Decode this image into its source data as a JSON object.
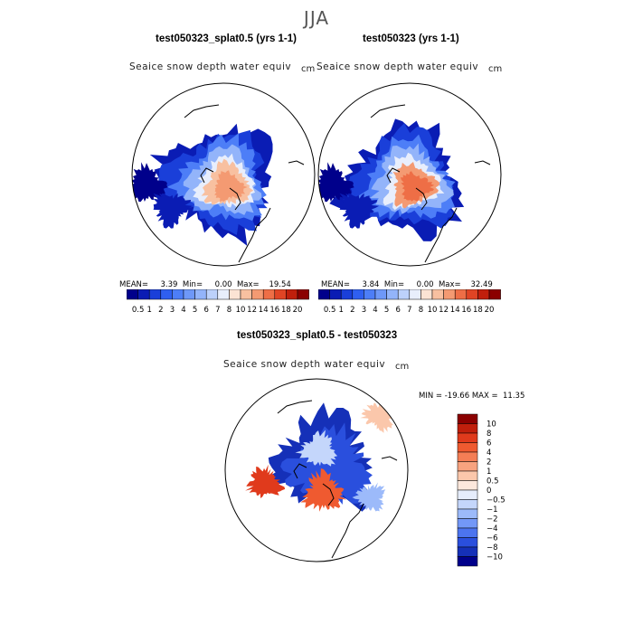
{
  "figure": {
    "season": "JJA",
    "colors": {
      "ocean": "#ffffff",
      "land_outline": "#000000"
    }
  },
  "panels": [
    {
      "title": "test050323_splat0.5 (yrs 1-1)",
      "field": "Seaice snow depth water equiv",
      "unit": "cm",
      "stats": {
        "mean_label": "MEAN=",
        "mean": "3.39",
        "min_label": "Min=",
        "min": "0.00",
        "max_label": "Max=",
        "max": "19.54"
      }
    },
    {
      "title": "test050323 (yrs 1-1)",
      "field": "Seaice snow depth water equiv",
      "unit": "cm",
      "stats": {
        "mean_label": "MEAN=",
        "mean": "3.84",
        "min_label": "Min=",
        "min": "0.00",
        "max_label": "Max=",
        "max": "32.49"
      }
    },
    {
      "title": "test050323_splat0.5 - test050323",
      "field": "Seaice snow depth water equiv",
      "unit": "cm",
      "stats_text": "MIN = -19.66 MAX =  11.35"
    }
  ],
  "chart_data": [
    {
      "type": "heatmap",
      "projection": "north polar stereographic",
      "title": "test050323_splat0.5 (yrs 1-1)",
      "colorbar": {
        "levels": [
          "0.5",
          "1",
          "2",
          "3",
          "4",
          "5",
          "6",
          "7",
          "8",
          "10",
          "12",
          "14",
          "16",
          "18",
          "20"
        ],
        "colors": [
          "#00008b",
          "#0a1cb4",
          "#1a3fd9",
          "#2f5ff0",
          "#4d7ef7",
          "#6e98f8",
          "#93b4fa",
          "#bcd1fb",
          "#e8eefc",
          "#fbe3d4",
          "#f8c0a0",
          "#f49a72",
          "#ee6e46",
          "#e04424",
          "#c01f0c",
          "#8b0000"
        ]
      },
      "mean": 3.39,
      "min": 0.0,
      "max": 19.54
    },
    {
      "type": "heatmap",
      "projection": "north polar stereographic",
      "title": "test050323 (yrs 1-1)",
      "colorbar": {
        "levels": [
          "0.5",
          "1",
          "2",
          "3",
          "4",
          "5",
          "6",
          "7",
          "8",
          "10",
          "12",
          "14",
          "16",
          "18",
          "20"
        ],
        "colors": [
          "#00008b",
          "#0a1cb4",
          "#1a3fd9",
          "#2f5ff0",
          "#4d7ef7",
          "#6e98f8",
          "#93b4fa",
          "#bcd1fb",
          "#e8eefc",
          "#fbe3d4",
          "#f8c0a0",
          "#f49a72",
          "#ee6e46",
          "#e04424",
          "#c01f0c",
          "#8b0000"
        ]
      },
      "mean": 3.84,
      "min": 0.0,
      "max": 32.49
    },
    {
      "type": "heatmap",
      "projection": "north polar stereographic",
      "title": "test050323_splat0.5 - test050323",
      "colorbar": {
        "orientation": "vertical",
        "levels": [
          "10",
          "8",
          "6",
          "4",
          "2",
          "1",
          "0.5",
          "0",
          "−0.5",
          "−1",
          "−2",
          "−4",
          "−6",
          "−8",
          "−10"
        ],
        "colors": [
          "#8b0000",
          "#c01f0c",
          "#e03a1c",
          "#ef5a30",
          "#f47e55",
          "#f8a37f",
          "#fbc7ab",
          "#fde8dc",
          "#e6edfb",
          "#c4d6fb",
          "#9cbafa",
          "#7398f7",
          "#4c74ef",
          "#2a4fdd",
          "#1530b8",
          "#00008b"
        ]
      },
      "min": -19.66,
      "max": 11.35
    }
  ]
}
